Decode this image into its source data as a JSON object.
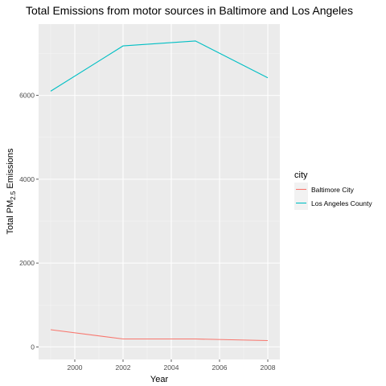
{
  "chart_data": {
    "type": "line",
    "title": "Total Emissions from motor sources in Baltimore and Los Angeles",
    "xlabel": "Year",
    "ylabel": {
      "prefix": "Total PM",
      "sub": "2.5",
      "suffix": " Emissions"
    },
    "x": [
      1999,
      2002,
      2005,
      2008
    ],
    "xlim": [
      1998.5,
      2008.5
    ],
    "ylim": [
      -300,
      7700
    ],
    "xticks": [
      2000,
      2002,
      2004,
      2006,
      2008
    ],
    "yticks": [
      0,
      2000,
      4000,
      6000
    ],
    "grid": true,
    "legend": {
      "title": "city",
      "position": "right"
    },
    "series": [
      {
        "name": "Baltimore City",
        "color": "#F8766D",
        "values": [
          410,
          190,
          190,
          150
        ]
      },
      {
        "name": "Los Angeles County",
        "color": "#00BFC4",
        "values": [
          6100,
          7180,
          7300,
          6420
        ]
      }
    ]
  }
}
